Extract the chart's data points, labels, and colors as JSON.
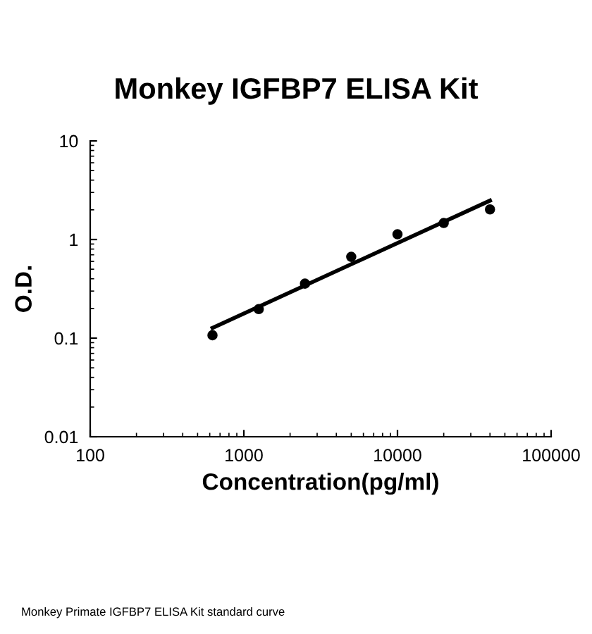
{
  "chart_data": {
    "type": "scatter",
    "title": "Monkey IGFBP7 ELISA Kit",
    "xlabel": "Concentration(pg/ml)",
    "ylabel": "O.D.",
    "log": "xy",
    "grid": false,
    "legend": false,
    "marker": "circle",
    "x": [
      625,
      1250,
      2500,
      5000,
      10000,
      20000,
      40000
    ],
    "series": [
      {
        "color": "#000000",
        "values": [
          0.107,
          0.197,
          0.357,
          0.667,
          1.13,
          1.47,
          2.02
        ]
      },
      {
        "type": "line",
        "color": "#000000",
        "x": [
          625,
          40000
        ],
        "values": [
          0.127,
          2.48
        ],
        "line_style": "solid",
        "marker": "none"
      }
    ],
    "xlim": [
      100,
      100000
    ],
    "xticks": [
      100,
      1000,
      10000,
      100000
    ],
    "ylim": [
      0.01,
      10
    ],
    "yticks": [
      0.01,
      0.1,
      1,
      10
    ],
    "annotations": [
      "Monkey Primate IGFBP7 ELISA Kit standard curve"
    ]
  }
}
